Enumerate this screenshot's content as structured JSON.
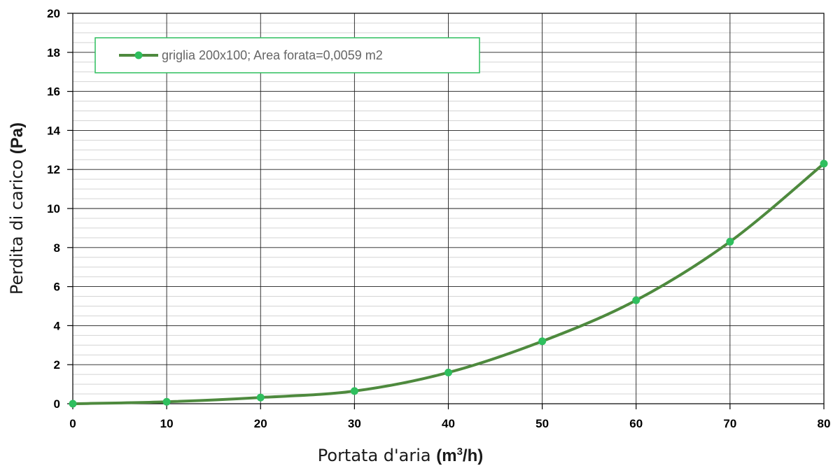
{
  "chart_data": {
    "type": "line",
    "x": [
      0,
      10,
      20,
      30,
      40,
      50,
      60,
      70,
      80
    ],
    "series": [
      {
        "name": "griglia 200x100;  Area forata=0,0059 m2",
        "values": [
          0,
          0.1,
          0.32,
          0.65,
          1.6,
          3.2,
          5.3,
          8.3,
          12.3
        ],
        "line_color": "#4e8a3e",
        "marker_color": "#2fbf5e"
      }
    ],
    "xlabel": {
      "main": "Portata d'aria ",
      "unit": "(m",
      "sup": "3",
      "unit_end": "/h)"
    },
    "ylabel": {
      "main": "Perdita di carico ",
      "unit": "(Pa)"
    },
    "xlim": [
      0,
      80
    ],
    "ylim": [
      0,
      20
    ],
    "x_ticks": [
      0,
      10,
      20,
      30,
      40,
      50,
      60,
      70,
      80
    ],
    "y_ticks": [
      0,
      2,
      4,
      6,
      8,
      10,
      12,
      14,
      16,
      18,
      20
    ],
    "grid": {
      "major": true,
      "minor_y": true
    },
    "legend_position": "top-left",
    "legend_border_color": "#2fbf5e"
  }
}
